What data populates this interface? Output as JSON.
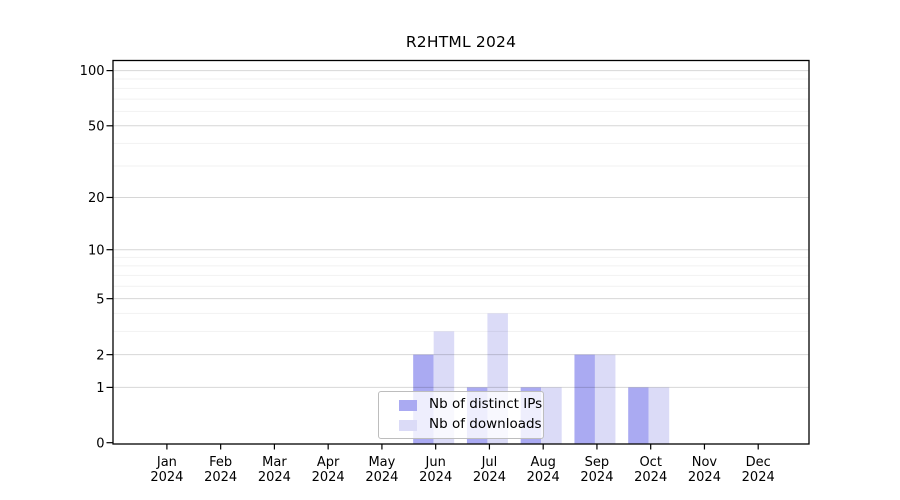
{
  "chart_data": {
    "type": "bar",
    "title": "R2HTML 2024",
    "months": [
      "Jan",
      "Feb",
      "Mar",
      "Apr",
      "May",
      "Jun",
      "Jul",
      "Aug",
      "Sep",
      "Oct",
      "Nov",
      "Dec"
    ],
    "year_label": "2024",
    "series": [
      {
        "name": "Nb of distinct IPs",
        "color": "#aaaaf2",
        "values": [
          0,
          0,
          0,
          0,
          0,
          2,
          1,
          1,
          2,
          1,
          0,
          0
        ]
      },
      {
        "name": "Nb of downloads",
        "color": "#dbdbf7",
        "values": [
          0,
          0,
          0,
          0,
          0,
          3,
          4,
          1,
          2,
          1,
          0,
          0
        ]
      }
    ],
    "y_axis": {
      "scale": "log1p",
      "ticks": [
        0,
        1,
        2,
        5,
        10,
        20,
        50,
        100
      ],
      "minor_gridlines": [
        3,
        4,
        6,
        7,
        8,
        9,
        30,
        40,
        60,
        70,
        80,
        90
      ],
      "range": [
        0,
        100
      ]
    },
    "xlabel": "",
    "ylabel": "",
    "grid": "horizontal",
    "legend_position": "bottom-center",
    "colors": {
      "axis": "#000000",
      "major_grid": "rgba(0,0,0,0.16)",
      "minor_grid": "rgba(0,0,0,0.055)",
      "background": "#ffffff"
    }
  }
}
